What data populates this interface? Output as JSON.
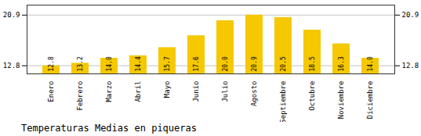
{
  "chart_data": {
    "type": "bar",
    "title": "Temperaturas Medias en piqueras",
    "categories": [
      "Enero",
      "Febrero",
      "Marzo",
      "Abril",
      "Mayo",
      "Junio",
      "Julio",
      "Agosto",
      "Septiembre",
      "Octubre",
      "Noviembre",
      "Diciembre"
    ],
    "values": [
      12.8,
      13.2,
      14.0,
      14.4,
      15.7,
      17.6,
      20.0,
      20.9,
      20.5,
      18.5,
      16.3,
      14.0
    ],
    "value_labels": [
      "12.8",
      "13.2",
      "14.0",
      "14.4",
      "15.7",
      "17.6",
      "20.0",
      "20.9",
      "20.5",
      "18.5",
      "16.3",
      "14.0"
    ],
    "color": "#F5C800",
    "ylim": [
      11.5,
      22.5
    ],
    "yticks": [
      12.8,
      20.9
    ],
    "grid": true,
    "data_labels": true
  }
}
